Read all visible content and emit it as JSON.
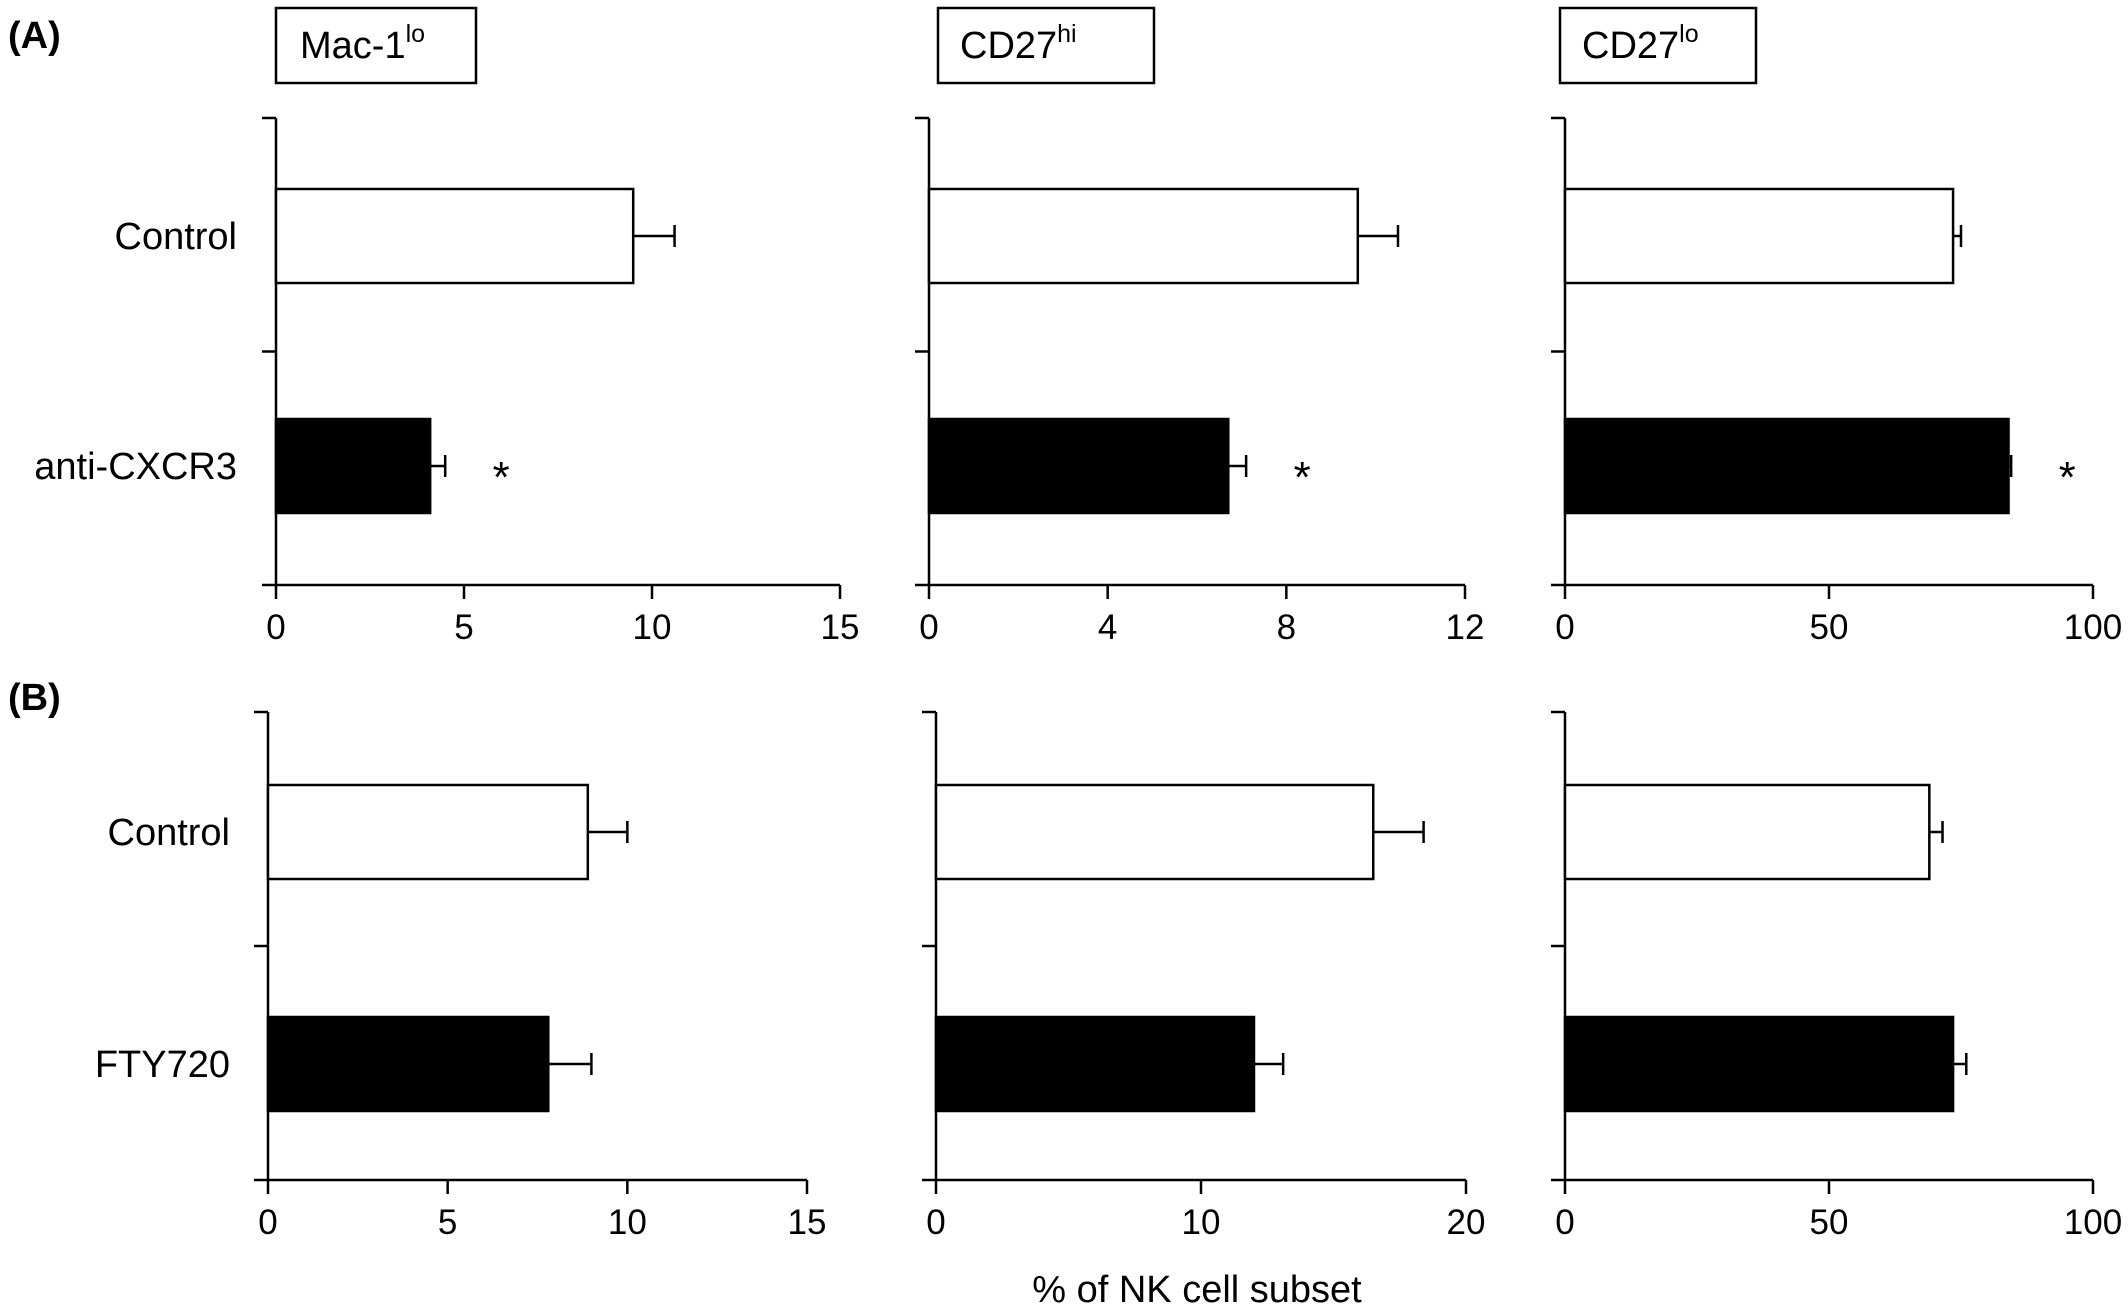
{
  "panel_labels": [
    "(A)",
    "(B)"
  ],
  "subset_boxes": [
    {
      "base": "Mac-1",
      "sup": "lo"
    },
    {
      "base": "CD27",
      "sup": "hi"
    },
    {
      "base": "CD27",
      "sup": "lo"
    }
  ],
  "xlabel": "% of NK cell subset",
  "colors": {
    "control_fill": "#ffffff",
    "treated_fill": "#000000",
    "stroke": "#000000"
  },
  "chart_data": [
    {
      "type": "bar",
      "orientation": "horizontal",
      "panel": "(A)",
      "title": "Mac-1lo",
      "categories": [
        "Control",
        "anti-CXCR3"
      ],
      "values": [
        9.5,
        4.1
      ],
      "errors": [
        1.1,
        0.4
      ],
      "significant": [
        false,
        true
      ],
      "significance_marker": "*",
      "xlim": [
        0,
        15
      ],
      "xticks": [
        "0",
        "5",
        "10",
        "15"
      ]
    },
    {
      "type": "bar",
      "orientation": "horizontal",
      "panel": "(A)",
      "title": "CD27hi",
      "categories": [
        "Control",
        "anti-CXCR3"
      ],
      "values": [
        9.6,
        6.7
      ],
      "errors": [
        0.9,
        0.4
      ],
      "significant": [
        false,
        true
      ],
      "significance_marker": "*",
      "xlim": [
        0,
        12
      ],
      "xticks": [
        "0",
        "4",
        "8",
        "12"
      ]
    },
    {
      "type": "bar",
      "orientation": "horizontal",
      "panel": "(A)",
      "title": "CD27lo",
      "categories": [
        "Control",
        "anti-CXCR3"
      ],
      "values": [
        73.5,
        84
      ],
      "errors": [
        1.5,
        0.5
      ],
      "significant": [
        false,
        true
      ],
      "significance_marker": "*",
      "xlim": [
        0,
        100
      ],
      "xticks": [
        "0",
        "50",
        "100"
      ]
    },
    {
      "type": "bar",
      "orientation": "horizontal",
      "panel": "(B)",
      "categories": [
        "Control",
        "FTY720"
      ],
      "values": [
        8.9,
        7.8
      ],
      "errors": [
        1.1,
        1.2
      ],
      "significant": [
        false,
        false
      ],
      "xlim": [
        0,
        15
      ],
      "xticks": [
        "0",
        "5",
        "10",
        "15"
      ]
    },
    {
      "type": "bar",
      "orientation": "horizontal",
      "panel": "(B)",
      "categories": [
        "Control",
        "FTY720"
      ],
      "values": [
        16.5,
        12
      ],
      "errors": [
        1.9,
        1.1
      ],
      "significant": [
        false,
        false
      ],
      "xlim": [
        0,
        20
      ],
      "xticks": [
        "0",
        "10",
        "20"
      ]
    },
    {
      "type": "bar",
      "orientation": "horizontal",
      "panel": "(B)",
      "categories": [
        "Control",
        "FTY720"
      ],
      "values": [
        69,
        73.5
      ],
      "errors": [
        2.5,
        2.5
      ],
      "significant": [
        false,
        false
      ],
      "xlim": [
        0,
        100
      ],
      "xticks": [
        "0",
        "50",
        "100"
      ]
    }
  ]
}
